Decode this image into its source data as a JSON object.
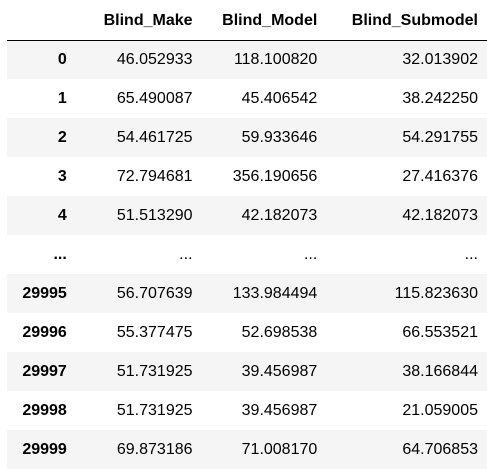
{
  "table": {
    "index_header": "",
    "columns": [
      "Blind_Make",
      "Blind_Model",
      "Blind_Submodel"
    ],
    "rows": [
      {
        "index": "0",
        "values": [
          "46.052933",
          "118.100820",
          "32.013902"
        ]
      },
      {
        "index": "1",
        "values": [
          "65.490087",
          "45.406542",
          "38.242250"
        ]
      },
      {
        "index": "2",
        "values": [
          "54.461725",
          "59.933646",
          "54.291755"
        ]
      },
      {
        "index": "3",
        "values": [
          "72.794681",
          "356.190656",
          "27.416376"
        ]
      },
      {
        "index": "4",
        "values": [
          "51.513290",
          "42.182073",
          "42.182073"
        ]
      },
      {
        "index": "...",
        "values": [
          "...",
          "...",
          "..."
        ]
      },
      {
        "index": "29995",
        "values": [
          "56.707639",
          "133.984494",
          "115.823630"
        ]
      },
      {
        "index": "29996",
        "values": [
          "55.377475",
          "52.698538",
          "66.553521"
        ]
      },
      {
        "index": "29997",
        "values": [
          "51.731925",
          "39.456987",
          "38.166844"
        ]
      },
      {
        "index": "29998",
        "values": [
          "51.731925",
          "39.456987",
          "21.059005"
        ]
      },
      {
        "index": "29999",
        "values": [
          "69.873186",
          "71.008170",
          "64.706853"
        ]
      }
    ]
  },
  "colors": {
    "stripe": "#f5f5f5",
    "header_rule": "#000000",
    "text": "#000000"
  }
}
